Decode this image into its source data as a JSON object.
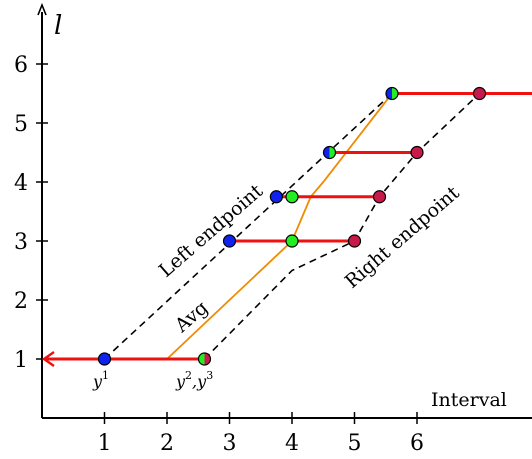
{
  "axes": {
    "y_label": "l",
    "x_label": "Interval",
    "x_ticks": [
      "1",
      "2",
      "3",
      "4",
      "5",
      "6"
    ],
    "y_ticks": [
      "1",
      "2",
      "3",
      "4",
      "5",
      "6"
    ],
    "x_range": [
      0,
      7.5
    ],
    "y_range": [
      0,
      6.6
    ]
  },
  "labels": {
    "left_endpoint": "Left endpoint",
    "right_endpoint": "Right endpoint",
    "avg": "Avg"
  },
  "point_labels": {
    "y1": {
      "base": "y",
      "sup": "1"
    },
    "y23": {
      "base1": "y",
      "sup1": "2",
      "sep": ",",
      "base2": "y",
      "sup2": "3"
    }
  },
  "colors": {
    "interval": "#ee1111",
    "left": "#1122ee",
    "right": "#c8194b",
    "avg_marker": "#22ee22",
    "avg_line": "#f08a00",
    "dashed": "#000000"
  },
  "chart_data": {
    "type": "line",
    "intervals": [
      {
        "level": 1,
        "left": 1,
        "right": 2.6,
        "avg": 2.6,
        "arrow_left": true
      },
      {
        "level": 3,
        "left": 3,
        "right": 5,
        "avg": 4
      },
      {
        "level": 3.75,
        "left": 3.75,
        "right": 5.4,
        "avg": 4
      },
      {
        "level": 4.5,
        "left": 4.6,
        "right": 6,
        "avg": 4.6
      },
      {
        "level": 5.5,
        "left": 5.6,
        "right": 7,
        "avg": 5.6,
        "arrow_right": true
      }
    ],
    "y_split_marker": {
      "x": 2.6,
      "y": 1,
      "left_color": "avg_marker",
      "right_color": "right"
    },
    "series": [
      {
        "name": "Left endpoint",
        "style": "dashed",
        "x": [
          1,
          5.6
        ],
        "y": [
          1,
          5.5
        ]
      },
      {
        "name": "Avg",
        "style": "solid",
        "x": [
          2,
          4,
          4.3,
          4.5,
          5.6
        ],
        "y": [
          1,
          3,
          3.75,
          4,
          5.5
        ]
      },
      {
        "name": "Right endpoint",
        "style": "dashed",
        "x": [
          2.6,
          4,
          5,
          5.4,
          6,
          7
        ],
        "y": [
          1,
          2.5,
          3,
          3.75,
          4.5,
          5.5
        ]
      }
    ]
  }
}
